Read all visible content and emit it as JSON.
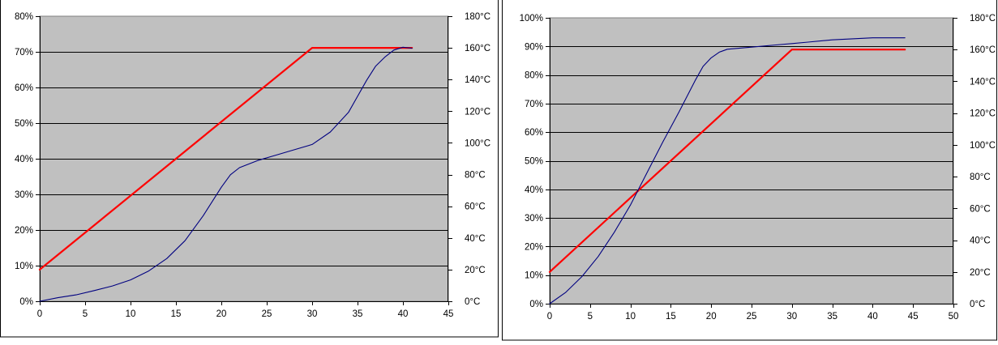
{
  "chart_data": [
    {
      "type": "line",
      "y_left": {
        "ylim": [
          0,
          80
        ],
        "ticks": [
          0,
          10,
          20,
          30,
          40,
          50,
          60,
          70,
          80
        ],
        "tick_labels": [
          "0%",
          "10%",
          "20%",
          "30%",
          "40%",
          "50%",
          "60%",
          "70%",
          "80%"
        ]
      },
      "y_right": {
        "ylim": [
          0,
          180
        ],
        "ticks": [
          0,
          20,
          40,
          60,
          80,
          100,
          120,
          140,
          160,
          180
        ],
        "tick_labels": [
          "0°C",
          "20°C",
          "40°C",
          "60°C",
          "80°C",
          "100°C",
          "120°C",
          "140°C",
          "160°C",
          "180°C"
        ]
      },
      "x_axis": {
        "xlim": [
          0,
          45
        ],
        "ticks": [
          0,
          5,
          10,
          15,
          20,
          25,
          30,
          35,
          40,
          45
        ],
        "tick_labels": [
          "0",
          "5",
          "10",
          "15",
          "20",
          "25",
          "30",
          "35",
          "40",
          "45"
        ]
      },
      "grid": "horizontal",
      "plot_background": "#c0c0c0",
      "series": [
        {
          "axis": "right",
          "color": "#ff0000",
          "x": [
            0,
            30,
            41
          ],
          "y": [
            20,
            160,
            160
          ]
        },
        {
          "axis": "left",
          "color": "#000080",
          "x": [
            0,
            2,
            4,
            6,
            8,
            10,
            12,
            14,
            16,
            18,
            19,
            20,
            21,
            22,
            24,
            26,
            28,
            30,
            32,
            34,
            35,
            36,
            37,
            38,
            39,
            40,
            41
          ],
          "y": [
            0,
            1,
            1.8,
            3,
            4.3,
            6,
            8.5,
            12,
            17,
            24,
            28,
            32,
            35.5,
            37.5,
            39.5,
            41,
            42.5,
            44,
            47.5,
            53,
            57.5,
            62,
            66,
            68.5,
            70.5,
            71.3,
            71
          ]
        }
      ]
    },
    {
      "type": "line",
      "y_left": {
        "ylim": [
          0,
          100
        ],
        "ticks": [
          0,
          10,
          20,
          30,
          40,
          50,
          60,
          70,
          80,
          90,
          100
        ],
        "tick_labels": [
          "0%",
          "10%",
          "20%",
          "30%",
          "40%",
          "50%",
          "60%",
          "70%",
          "80%",
          "90%",
          "100%"
        ]
      },
      "y_right": {
        "ylim": [
          0,
          180
        ],
        "ticks": [
          0,
          20,
          40,
          60,
          80,
          100,
          120,
          140,
          160,
          180
        ],
        "tick_labels": [
          "0°C",
          "20°C",
          "40°C",
          "60°C",
          "80°C",
          "100°C",
          "120°C",
          "140°C",
          "160°C",
          "180°C"
        ]
      },
      "x_axis": {
        "xlim": [
          0,
          50
        ],
        "ticks": [
          0,
          5,
          10,
          15,
          20,
          25,
          30,
          35,
          40,
          45,
          50
        ],
        "tick_labels": [
          "0",
          "5",
          "10",
          "15",
          "20",
          "25",
          "30",
          "35",
          "40",
          "45",
          "50"
        ]
      },
      "grid": "horizontal",
      "plot_background": "#c0c0c0",
      "series": [
        {
          "axis": "right",
          "color": "#ff0000",
          "x": [
            0,
            30,
            44
          ],
          "y": [
            20,
            160,
            160
          ]
        },
        {
          "axis": "left",
          "color": "#000080",
          "x": [
            0,
            2,
            4,
            6,
            8,
            10,
            12,
            14,
            16,
            18,
            19,
            20,
            21,
            22,
            24,
            26,
            28,
            30,
            32,
            35,
            40,
            44
          ],
          "y": [
            0,
            4,
            9.5,
            16.5,
            25,
            34.5,
            45.5,
            56.5,
            67,
            78,
            83,
            86,
            88,
            89,
            89.5,
            90,
            90.5,
            91,
            91.5,
            92.3,
            93,
            93
          ]
        }
      ]
    }
  ]
}
